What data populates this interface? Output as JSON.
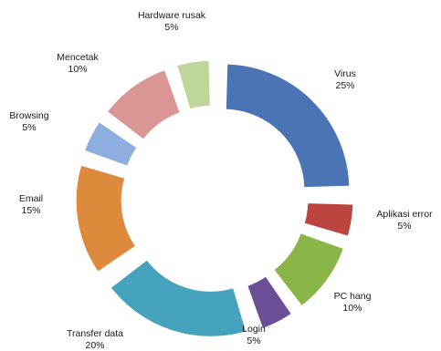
{
  "chart_data": {
    "type": "pie",
    "variant": "exploded-donut",
    "slices": [
      {
        "label": "Virus",
        "percent_label": "25%",
        "value": 25,
        "color": "#4a74b4"
      },
      {
        "label": "Aplikasi error",
        "percent_label": "5%",
        "value": 5,
        "color": "#bd4540"
      },
      {
        "label": "PC hang",
        "percent_label": "10%",
        "value": 10,
        "color": "#8ab648"
      },
      {
        "label": "Login",
        "percent_label": "5%",
        "value": 5,
        "color": "#6a4f97"
      },
      {
        "label": "Transfer data",
        "percent_label": "20%",
        "value": 20,
        "color": "#46a3be"
      },
      {
        "label": "Email",
        "percent_label": "15%",
        "value": 15,
        "color": "#de8a3c"
      },
      {
        "label": "Browsing",
        "percent_label": "5%",
        "value": 5,
        "color": "#8faee0"
      },
      {
        "label": "Mencetak",
        "percent_label": "10%",
        "value": 10,
        "color": "#d99695"
      },
      {
        "label": "Hardware rusak",
        "percent_label": "5%",
        "value": 5,
        "color": "#bfd69a"
      }
    ],
    "legend": "none",
    "data_labels": "outside"
  }
}
